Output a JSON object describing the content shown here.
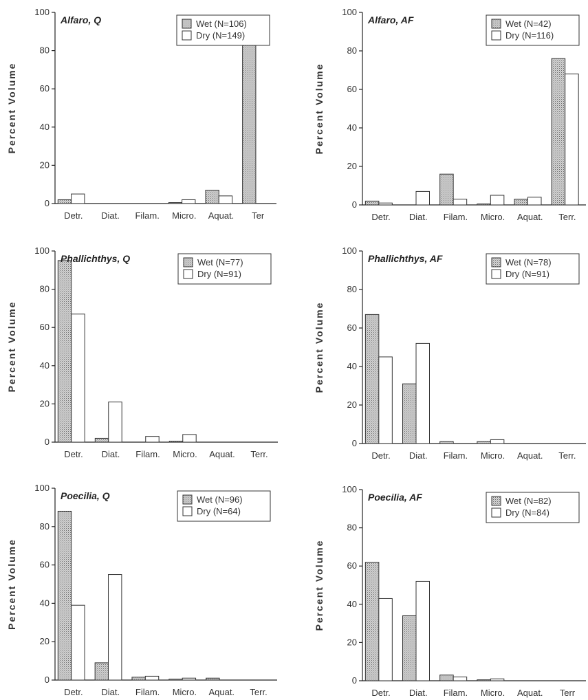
{
  "ylabel": "Percent Volume",
  "chart_data": [
    {
      "type": "bar",
      "title": "Alfaro, Q",
      "categories": [
        "Detr.",
        "Diat.",
        "Filam.",
        "Micro.",
        "Aquat.",
        "Ter"
      ],
      "ylabel": "Percent Volume",
      "ylim": [
        0,
        100
      ],
      "yticks": [
        0,
        20,
        40,
        60,
        80,
        100
      ],
      "legend_position": "top-right",
      "series": [
        {
          "name": "Wet (N=106)",
          "values": [
            2,
            0,
            0,
            0.5,
            7,
            90
          ]
        },
        {
          "name": "Dry (N=149)",
          "values": [
            5,
            0,
            0,
            2,
            4,
            0
          ]
        }
      ]
    },
    {
      "type": "bar",
      "title": "Alfaro, AF",
      "categories": [
        "Detr.",
        "Diat.",
        "Filam.",
        "Micro.",
        "Aquat.",
        "Terr."
      ],
      "ylabel": "Percent Volume",
      "ylim": [
        0,
        100
      ],
      "yticks": [
        0,
        20,
        40,
        60,
        80,
        100
      ],
      "legend_position": "top-right",
      "series": [
        {
          "name": "Wet (N=42)",
          "values": [
            2,
            0,
            16,
            0.5,
            3,
            76
          ]
        },
        {
          "name": "Dry (N=116)",
          "values": [
            1,
            7,
            3,
            5,
            4,
            68
          ]
        }
      ]
    },
    {
      "type": "bar",
      "title": "Phallichthys, Q",
      "categories": [
        "Detr.",
        "Diat.",
        "Filam.",
        "Micro.",
        "Aquat.",
        "Terr."
      ],
      "ylabel": "Percent Volume",
      "ylim": [
        0,
        100
      ],
      "yticks": [
        0,
        20,
        40,
        60,
        80,
        100
      ],
      "legend_position": "top-right",
      "series": [
        {
          "name": "Wet (N=77)",
          "values": [
            95,
            2,
            0,
            0.5,
            0,
            0
          ]
        },
        {
          "name": "Dry (N=91)",
          "values": [
            67,
            21,
            3,
            4,
            0,
            0
          ]
        }
      ]
    },
    {
      "type": "bar",
      "title": "Phallichthys, AF",
      "categories": [
        "Detr.",
        "Diat.",
        "Filam.",
        "Micro.",
        "Aquat.",
        "Terr."
      ],
      "ylabel": "Percent Volume",
      "ylim": [
        0,
        100
      ],
      "yticks": [
        0,
        20,
        40,
        60,
        80,
        100
      ],
      "legend_position": "top-right",
      "series": [
        {
          "name": "Wet (N=78)",
          "values": [
            67,
            31,
            1,
            1,
            0,
            0
          ]
        },
        {
          "name": "Dry (N=91)",
          "values": [
            45,
            52,
            0,
            2,
            0,
            0
          ]
        }
      ]
    },
    {
      "type": "bar",
      "title": "Poecilia, Q",
      "categories": [
        "Detr.",
        "Diat.",
        "Filam.",
        "Micro.",
        "Aquat.",
        "Terr."
      ],
      "ylabel": "Percent Volume",
      "ylim": [
        0,
        100
      ],
      "yticks": [
        0,
        20,
        40,
        60,
        80,
        100
      ],
      "legend_position": "top-right",
      "series": [
        {
          "name": "Wet (N=96)",
          "values": [
            88,
            9,
            1.5,
            0.5,
            1,
            0
          ]
        },
        {
          "name": "Dry (N=64)",
          "values": [
            39,
            55,
            2,
            1,
            0,
            0
          ]
        }
      ]
    },
    {
      "type": "bar",
      "title": "Poecilia, AF",
      "categories": [
        "Detr.",
        "Diat.",
        "Filam.",
        "Micro.",
        "Aquat.",
        "Terr"
      ],
      "ylabel": "Percent Volume",
      "ylim": [
        0,
        100
      ],
      "yticks": [
        0,
        20,
        40,
        60,
        80,
        100
      ],
      "legend_position": "top-right",
      "series": [
        {
          "name": "Wet (N=82)",
          "values": [
            62,
            34,
            3,
            0.5,
            0,
            0
          ]
        },
        {
          "name": "Dry (N=84)",
          "values": [
            43,
            52,
            2,
            1,
            0,
            0
          ]
        }
      ]
    }
  ],
  "colors": {
    "wet_fill": "#bdbdbd",
    "dry_fill": "#ffffff",
    "axis": "#222222"
  }
}
